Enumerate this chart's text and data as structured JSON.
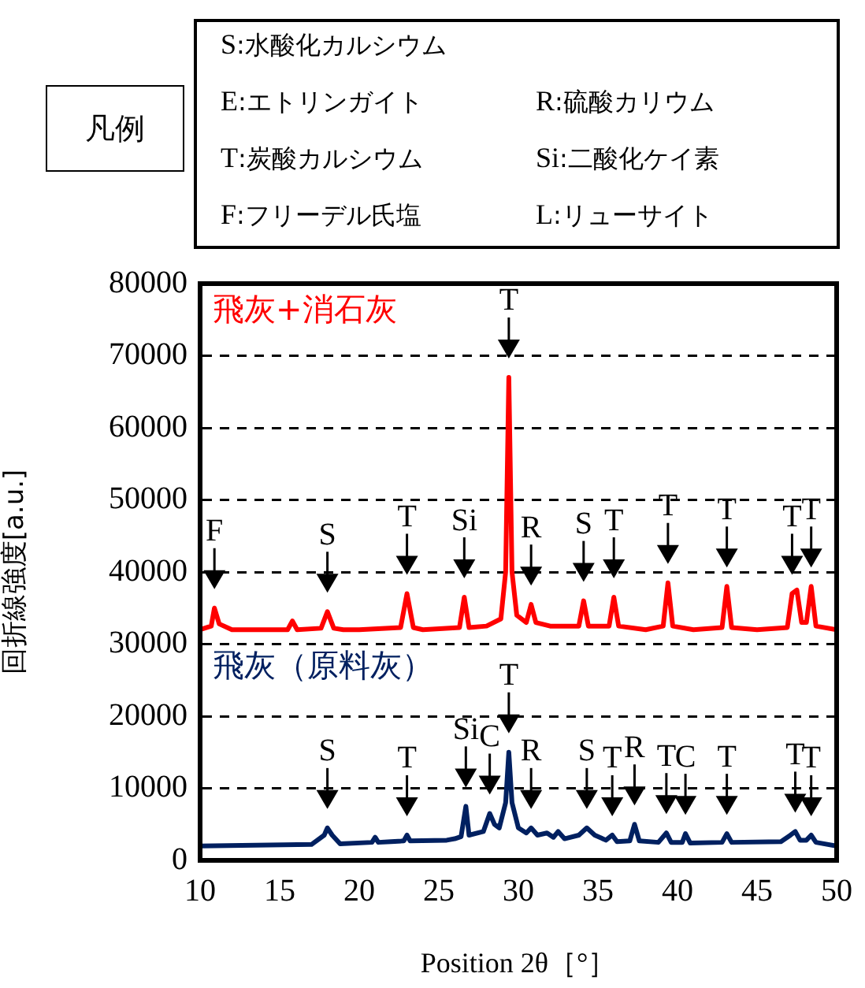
{
  "chart_data": {
    "type": "line",
    "xlabel": "Position 2θ［°］",
    "ylabel": "回折線強度[a.u.]",
    "xlim": [
      10,
      50
    ],
    "xticks": [
      10,
      15,
      20,
      25,
      30,
      35,
      40,
      45,
      50
    ],
    "ylim": [
      0,
      80000
    ],
    "yticks": [
      0,
      10000,
      20000,
      30000,
      40000,
      50000,
      60000,
      70000,
      80000
    ],
    "grid": "y",
    "legend": false,
    "marker": "none",
    "line_style": "solid",
    "series": [
      {
        "name": "飛灰+消石灰",
        "color": "#ff0000",
        "x": [
          10,
          10.7,
          10.9,
          11.2,
          12,
          15.5,
          15.8,
          16.1,
          17.6,
          18,
          18.4,
          19,
          20,
          22.6,
          23,
          23.4,
          24,
          26.3,
          26.6,
          26.9,
          28,
          28.9,
          29.2,
          29.4,
          29.6,
          29.9,
          30.5,
          30.8,
          31.1,
          32,
          33.8,
          34.1,
          34.4,
          35.7,
          36,
          36.3,
          38,
          39.1,
          39.4,
          39.7,
          41,
          42.8,
          43.1,
          43.4,
          45,
          46.9,
          47.2,
          47.5,
          47.8,
          48.1,
          48.4,
          48.7,
          50
        ],
        "values": [
          32000,
          32500,
          35000,
          32800,
          32000,
          32000,
          33200,
          32000,
          32200,
          34500,
          32200,
          32000,
          32000,
          32300,
          37000,
          32300,
          32000,
          32300,
          36500,
          32300,
          32500,
          33500,
          40000,
          67000,
          40000,
          34000,
          33000,
          35500,
          33000,
          32500,
          32500,
          36000,
          32500,
          32500,
          36500,
          32500,
          32000,
          32500,
          38500,
          32500,
          32000,
          32300,
          38000,
          32300,
          32000,
          32300,
          37000,
          37500,
          33000,
          33000,
          38000,
          32500,
          32000
        ]
      },
      {
        "name": "飛灰（原料灰）",
        "color": "#002060",
        "x": [
          10,
          17,
          17.8,
          18,
          18.3,
          18.8,
          20.8,
          21,
          21.2,
          22,
          22.8,
          23,
          23.2,
          25.5,
          26,
          26.4,
          26.7,
          26.9,
          27.8,
          28.2,
          28.5,
          28.8,
          29.2,
          29.4,
          29.6,
          30,
          30.5,
          30.8,
          31.2,
          31.8,
          32.2,
          32.5,
          32.9,
          33.8,
          34.3,
          34.8,
          35.5,
          35.9,
          36.2,
          37,
          37.3,
          37.6,
          38.8,
          39.3,
          39.6,
          40.3,
          40.5,
          40.8,
          42.8,
          43.1,
          43.4,
          46.5,
          47.1,
          47.4,
          47.7,
          48.1,
          48.4,
          48.7,
          50
        ],
        "values": [
          2000,
          2200,
          3500,
          4500,
          3500,
          2300,
          2500,
          3200,
          2500,
          2600,
          2700,
          3500,
          2700,
          2800,
          3000,
          3300,
          7500,
          3500,
          4000,
          6500,
          5000,
          4500,
          8000,
          15000,
          8000,
          4500,
          3800,
          4500,
          3500,
          3800,
          3200,
          4000,
          3000,
          3500,
          4500,
          3500,
          2800,
          3500,
          2600,
          2700,
          5000,
          2700,
          2500,
          3800,
          2500,
          2500,
          3700,
          2400,
          2500,
          3700,
          2500,
          2600,
          3500,
          4000,
          2800,
          2800,
          3500,
          2500,
          2000
        ]
      }
    ],
    "annotations": [
      "凡例",
      "S:水酸化カルシウム",
      "E:エトリンガイト",
      "T:炭酸カルシウム",
      "F:フリーデル氏塩",
      "R:硫酸カリウム",
      "Si:二酸化ケイ素",
      "L:リューサイト",
      {
        "text": "F",
        "x": 10.9,
        "y": 35000
      },
      {
        "text": "S",
        "x": 18,
        "y": 34500
      },
      {
        "text": "T",
        "x": 23,
        "y": 37000
      },
      {
        "text": "Si",
        "x": 26.6,
        "y": 36500
      },
      {
        "text": "T",
        "x": 29.4,
        "y": 67000
      },
      {
        "text": "R",
        "x": 30.8,
        "y": 35500
      },
      {
        "text": "S",
        "x": 34.1,
        "y": 36000
      },
      {
        "text": "T",
        "x": 36,
        "y": 36500
      },
      {
        "text": "T",
        "x": 39.4,
        "y": 38500
      },
      {
        "text": "T",
        "x": 43.1,
        "y": 38000
      },
      {
        "text": "T",
        "x": 47.2,
        "y": 37000
      },
      {
        "text": "T",
        "x": 48.4,
        "y": 38000
      },
      {
        "text": "S",
        "x": 18,
        "y": 4500
      },
      {
        "text": "T",
        "x": 23,
        "y": 3500
      },
      {
        "text": "Si",
        "x": 26.7,
        "y": 7500
      },
      {
        "text": "C",
        "x": 28.2,
        "y": 6500
      },
      {
        "text": "T",
        "x": 29.4,
        "y": 15000
      },
      {
        "text": "R",
        "x": 30.8,
        "y": 4500
      },
      {
        "text": "S",
        "x": 34.3,
        "y": 4500
      },
      {
        "text": "T",
        "x": 35.9,
        "y": 3500
      },
      {
        "text": "R",
        "x": 37.3,
        "y": 5000
      },
      {
        "text": "T",
        "x": 39.3,
        "y": 3800
      },
      {
        "text": "C",
        "x": 40.5,
        "y": 3700
      },
      {
        "text": "T",
        "x": 43.1,
        "y": 3700
      },
      {
        "text": "T",
        "x": 47.4,
        "y": 4000
      },
      {
        "text": "T",
        "x": 48.4,
        "y": 3500
      }
    ]
  }
}
